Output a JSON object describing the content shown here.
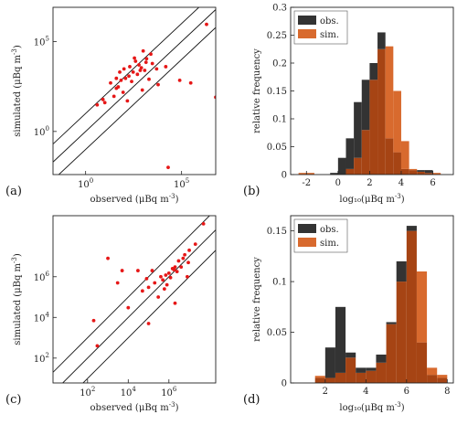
{
  "colors": {
    "obs": "#333333",
    "sim": "#D86A2E",
    "overlap": "#A64414",
    "points": "#E61717",
    "line": "#111111"
  },
  "chart_data": [
    {
      "panel": "(a)",
      "type": "scatter",
      "xlabel": "observed (μBq m⁻³)",
      "ylabel": "simulated (μBq m⁻³)",
      "scale": "log",
      "xlim": [
        0.02,
        6000000
      ],
      "ylim": [
        0.004,
        8000000
      ],
      "xticks": [
        {
          "base": "10",
          "exp": "0",
          "value": 1
        },
        {
          "base": "10",
          "exp": "5",
          "value": 100000
        }
      ],
      "yticks": [
        {
          "base": "10",
          "exp": "0",
          "value": 1
        },
        {
          "base": "10",
          "exp": "5",
          "value": 100000
        }
      ],
      "reference_lines": "1:1 and factor-of-10 bounds",
      "points": [
        [
          50,
          300
        ],
        [
          120,
          900
        ],
        [
          300,
          2000
        ],
        [
          8,
          60
        ],
        [
          600,
          5000
        ],
        [
          1500,
          11000
        ],
        [
          40,
          900
        ],
        [
          250,
          600
        ],
        [
          700,
          2500
        ],
        [
          3000,
          6000
        ],
        [
          90,
          150
        ],
        [
          1000,
          30000
        ],
        [
          20,
          500
        ],
        [
          400,
          8000
        ],
        [
          200,
          4000
        ],
        [
          5000,
          3000
        ],
        [
          60,
          2000
        ],
        [
          2000,
          800
        ],
        [
          150,
          50
        ],
        [
          30,
          90
        ],
        [
          80000,
          700
        ],
        [
          300000,
          500
        ],
        [
          500,
          1500
        ],
        [
          100,
          3000
        ],
        [
          1200,
          2500
        ],
        [
          2500,
          20000
        ],
        [
          70,
          700
        ],
        [
          15000,
          4000
        ],
        [
          40,
          250
        ],
        [
          900,
          200
        ],
        [
          6000,
          400
        ],
        [
          350,
          12000
        ],
        [
          180,
          1200
        ],
        [
          4,
          30
        ],
        [
          2000000,
          900000
        ],
        [
          6000000,
          80
        ],
        [
          20000,
          0.01
        ],
        [
          10,
          40
        ],
        [
          1400,
          7000
        ],
        [
          800,
          3500
        ]
      ],
      "grid": false
    },
    {
      "panel": "(b)",
      "type": "bar",
      "xlabel": "log₁₀(μBq m⁻³)",
      "ylabel": "relative frequency",
      "xlim": [
        -3,
        7.3
      ],
      "ylim": [
        0,
        0.3
      ],
      "xticks": [
        "-2",
        "0",
        "2",
        "4",
        "6"
      ],
      "yticks": [
        "0",
        "0.05",
        "0.1",
        "0.15",
        "0.2",
        "0.25",
        "0.3"
      ],
      "bin_edges": [
        -3,
        -2.5,
        -2,
        -1.5,
        -1,
        -0.5,
        0,
        0.5,
        1,
        1.5,
        2,
        2.5,
        3,
        3.5,
        4,
        4.5,
        5,
        5.5,
        6,
        6.5,
        7
      ],
      "series": [
        {
          "name": "obs.",
          "values": [
            0,
            0,
            0,
            0,
            0,
            0.003,
            0.03,
            0.065,
            0.13,
            0.17,
            0.2,
            0.255,
            0.065,
            0.04,
            0.01,
            0.008,
            0.008,
            0.008,
            0,
            0,
            0
          ]
        },
        {
          "name": "sim.",
          "values": [
            0,
            0.003,
            0.003,
            0,
            0,
            0,
            0,
            0.01,
            0.03,
            0.08,
            0.17,
            0.225,
            0.23,
            0.15,
            0.06,
            0.01,
            0.005,
            0.003,
            0.003,
            0,
            0
          ]
        }
      ],
      "legend": "top-left"
    },
    {
      "panel": "(c)",
      "type": "scatter",
      "xlabel": "observed (μBq m⁻³)",
      "ylabel": "simulated (μBq m⁻³)",
      "scale": "log",
      "xlim": [
        2,
        200000000
      ],
      "ylim": [
        6,
        1000000000
      ],
      "xticks": [
        {
          "base": "10",
          "exp": "2",
          "value": 100
        },
        {
          "base": "10",
          "exp": "4",
          "value": 10000
        },
        {
          "base": "10",
          "exp": "6",
          "value": 1000000
        }
      ],
      "yticks": [
        {
          "base": "10",
          "exp": "2",
          "value": 100
        },
        {
          "base": "10",
          "exp": "4",
          "value": 10000
        },
        {
          "base": "10",
          "exp": "6",
          "value": 1000000
        }
      ],
      "reference_lines": "1:1 and factor-of-10 bounds",
      "points": [
        [
          1000000,
          1500000
        ],
        [
          2000000,
          3000000
        ],
        [
          500000,
          700000
        ],
        [
          3000000,
          6000000
        ],
        [
          800000,
          400000
        ],
        [
          1500000,
          2500000
        ],
        [
          5000000,
          8000000
        ],
        [
          200000,
          500000
        ],
        [
          4000000,
          3000000
        ],
        [
          10000000,
          20000000
        ],
        [
          300000,
          100000
        ],
        [
          700000,
          1200000
        ],
        [
          1200000,
          900000
        ],
        [
          2500000,
          1800000
        ],
        [
          6000000,
          12000000
        ],
        [
          100000,
          300000
        ],
        [
          400000,
          1000000
        ],
        [
          9000000,
          5000000
        ],
        [
          20000000,
          40000000
        ],
        [
          50000,
          200000
        ],
        [
          1000,
          8000000
        ],
        [
          5000,
          2000000
        ],
        [
          10000,
          30000
        ],
        [
          100000,
          5000
        ],
        [
          200,
          7000
        ],
        [
          30000,
          2000000
        ],
        [
          3000,
          500000
        ],
        [
          50000000,
          400000000
        ],
        [
          1800000,
          2200000
        ],
        [
          600000,
          250000
        ],
        [
          150000,
          2000000
        ],
        [
          80000,
          800000
        ],
        [
          8000000,
          1000000
        ],
        [
          2000000,
          50000
        ],
        [
          300,
          400
        ]
      ],
      "grid": false
    },
    {
      "panel": "(d)",
      "type": "bar",
      "xlabel": "log₁₀(μBq m⁻³)",
      "ylabel": "relative frequency",
      "xlim": [
        0.3,
        8.3
      ],
      "ylim": [
        0,
        0.165
      ],
      "xticks": [
        "2",
        "4",
        "6",
        "8"
      ],
      "yticks": [
        "0",
        "0.05",
        "0.1",
        "0.15"
      ],
      "bin_edges": [
        1.5,
        2,
        2.5,
        3,
        3.5,
        4,
        4.5,
        5,
        5.5,
        6,
        6.5,
        7,
        7.5,
        8
      ],
      "series": [
        {
          "name": "obs.",
          "values": [
            0.005,
            0.035,
            0.075,
            0.03,
            0.015,
            0.015,
            0.028,
            0.06,
            0.12,
            0.155,
            0.04,
            0.008,
            0.005
          ]
        },
        {
          "name": "sim.",
          "values": [
            0.007,
            0.005,
            0.01,
            0.025,
            0.01,
            0.012,
            0.02,
            0.058,
            0.1,
            0.15,
            0.11,
            0.015,
            0.008
          ]
        }
      ],
      "legend": "top-left"
    }
  ]
}
